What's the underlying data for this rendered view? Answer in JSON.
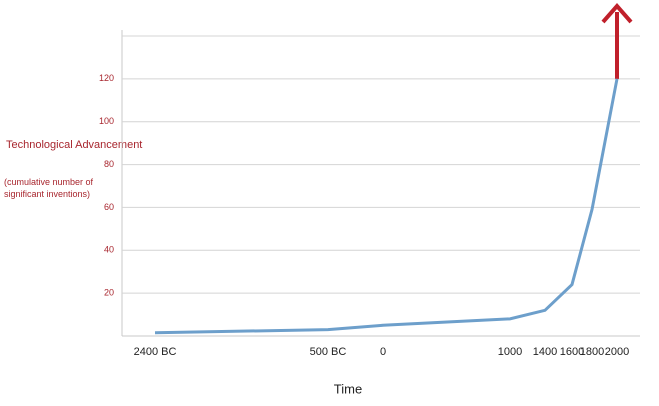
{
  "chart_data": {
    "type": "line",
    "y_label": "Technological Advancement",
    "y_sublabel": "(cumulative number of significant inventions)",
    "x_label": "Time",
    "categories": [
      "2400 BC",
      "500 BC",
      "0",
      "1000",
      "1400",
      "1600",
      "1800",
      "2000"
    ],
    "series": [
      {
        "color": "#6d9fcb",
        "values": [
          1.5,
          3,
          5,
          8,
          12,
          24,
          59,
          120
        ]
      }
    ],
    "ylim": [
      0,
      140
    ],
    "yticks": [
      20,
      40,
      60,
      80,
      100,
      120
    ],
    "grid": true,
    "arrow_color": "#c0202b"
  }
}
